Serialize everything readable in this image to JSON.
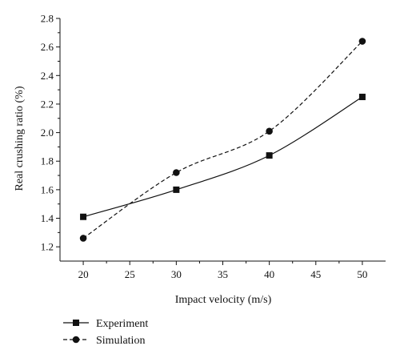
{
  "chart_data": {
    "type": "line",
    "xlabel": "Impact velocity (m/s)",
    "ylabel": "Real crushing ratio (%)",
    "xlim": [
      17.5,
      52.5
    ],
    "ylim": [
      1.1,
      2.8
    ],
    "x_ticks": [
      20,
      25,
      30,
      35,
      40,
      45,
      50
    ],
    "x_tick_labels": [
      "20",
      "25",
      "30",
      "35",
      "40",
      "45",
      "50"
    ],
    "y_ticks": [
      1.2,
      1.4,
      1.6,
      1.8,
      2.0,
      2.2,
      2.4,
      2.6,
      2.8
    ],
    "y_tick_labels": [
      "1.2",
      "1.4",
      "1.6",
      "1.8",
      "2.0",
      "2.2",
      "2.4",
      "2.6",
      "2.8"
    ],
    "grid": false,
    "legend_position": "bottom-left, below the axes",
    "series": [
      {
        "name": "Experiment",
        "x": [
          20,
          30,
          40,
          50
        ],
        "y": [
          1.41,
          1.6,
          1.84,
          2.25
        ],
        "marker": "square",
        "line_style": "solid",
        "color": "#111111"
      },
      {
        "name": "Simulation",
        "x": [
          20,
          30,
          40,
          50
        ],
        "y": [
          1.26,
          1.72,
          2.01,
          2.64
        ],
        "marker": "circle",
        "line_style": "dashed",
        "color": "#111111"
      }
    ]
  }
}
